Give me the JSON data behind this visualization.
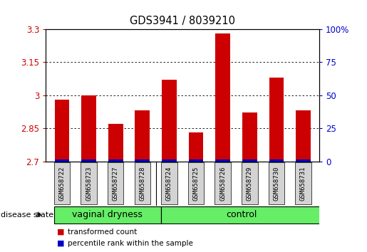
{
  "title": "GDS3941 / 8039210",
  "samples": [
    "GSM658722",
    "GSM658723",
    "GSM658727",
    "GSM658728",
    "GSM658724",
    "GSM658725",
    "GSM658726",
    "GSM658729",
    "GSM658730",
    "GSM658731"
  ],
  "transformed_counts": [
    2.98,
    3.0,
    2.87,
    2.93,
    3.07,
    2.83,
    3.28,
    2.92,
    3.08,
    2.93
  ],
  "percentile_ranks": [
    1,
    1,
    1,
    1,
    1,
    1,
    1,
    1,
    1,
    1
  ],
  "ylim_left": [
    2.7,
    3.3
  ],
  "ylim_right": [
    0,
    100
  ],
  "yticks_left": [
    2.7,
    2.85,
    3.0,
    3.15,
    3.3
  ],
  "yticks_right": [
    0,
    25,
    50,
    75,
    100
  ],
  "ytick_labels_left": [
    "2.7",
    "2.85",
    "3",
    "3.15",
    "3.3"
  ],
  "ytick_labels_right": [
    "0",
    "25",
    "50",
    "75",
    "100%"
  ],
  "groups": [
    {
      "label": "vaginal dryness",
      "start": 0,
      "end": 4
    },
    {
      "label": "control",
      "start": 4,
      "end": 10
    }
  ],
  "bar_color": "#cc0000",
  "percentile_color": "#0000cc",
  "bar_width": 0.55,
  "background_color": "#ffffff",
  "tick_label_color_left": "#cc0000",
  "tick_label_color_right": "#0000cc",
  "disease_state_label": "disease state",
  "legend_items": [
    {
      "label": "transformed count",
      "color": "#cc0000"
    },
    {
      "label": "percentile rank within the sample",
      "color": "#0000cc"
    }
  ],
  "sample_box_color": "#d3d3d3",
  "group_box_color": "#66ee66",
  "group_divider": 4
}
